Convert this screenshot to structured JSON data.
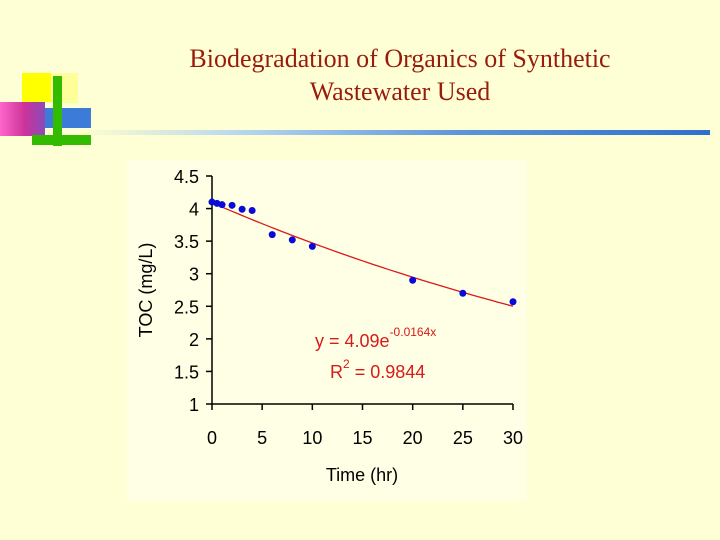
{
  "slide": {
    "title_line1": "Biodegradation of Organics of Synthetic",
    "title_line2": "Wastewater Used"
  },
  "colors": {
    "background": "#ffffd5",
    "title": "#9a1b0e",
    "points": "#0a0ad8",
    "fit_line": "#d81a1a",
    "annotation": "#d81a1a"
  },
  "chart_data": {
    "type": "scatter",
    "title": "",
    "xlabel": "Time (hr)",
    "ylabel": "TOC (mg/L)",
    "xlim": [
      0,
      30
    ],
    "ylim": [
      1,
      4.5
    ],
    "xticks": [
      "0",
      "5",
      "10",
      "15",
      "20",
      "25",
      "30"
    ],
    "yticks": [
      "1",
      "1.5",
      "2",
      "2.5",
      "3",
      "3.5",
      "4",
      "4.5"
    ],
    "grid": false,
    "legend": "none",
    "series": [
      {
        "points": [
          {
            "x": 0,
            "y": 4.1
          },
          {
            "x": 0.5,
            "y": 4.08
          },
          {
            "x": 1,
            "y": 4.06
          },
          {
            "x": 2,
            "y": 4.05
          },
          {
            "x": 3,
            "y": 3.99
          },
          {
            "x": 4,
            "y": 3.97
          },
          {
            "x": 6,
            "y": 3.6
          },
          {
            "x": 8,
            "y": 3.52
          },
          {
            "x": 10,
            "y": 3.42
          },
          {
            "x": 20,
            "y": 2.9
          },
          {
            "x": 25,
            "y": 2.7
          },
          {
            "x": 30,
            "y": 2.57
          }
        ]
      }
    ],
    "trendline": {
      "type": "exponential",
      "a": 4.09,
      "b": -0.0164,
      "equation_prefix": "y = 4.09e",
      "equation_exponent": "-0.0164x",
      "r2_prefix": "R",
      "r2_power": "2",
      "r2_value": " = 0.9844"
    }
  }
}
